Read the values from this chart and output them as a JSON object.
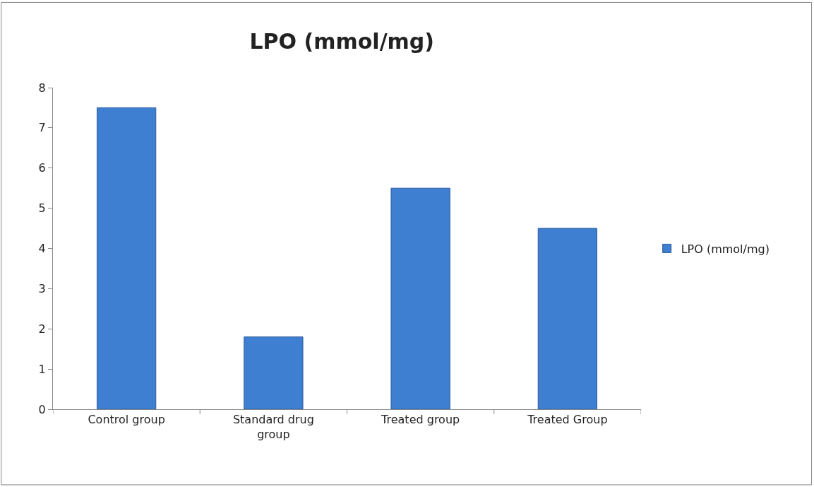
{
  "chart_data": {
    "type": "bar",
    "title": "LPO (mmol/mg)",
    "categories": [
      "Control group",
      "Standard drug group",
      "Treated group",
      "Treated Group"
    ],
    "series": [
      {
        "name": "LPO (mmol/mg)",
        "color": "#3f7fd1",
        "values": [
          7.5,
          1.8,
          5.5,
          4.5
        ]
      }
    ],
    "ylim": [
      0,
      8
    ],
    "yticks": [
      0,
      1,
      2,
      3,
      4,
      5,
      6,
      7,
      8
    ],
    "legend": "right"
  }
}
